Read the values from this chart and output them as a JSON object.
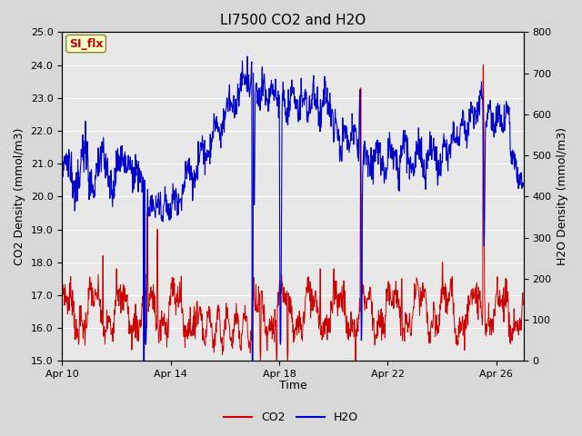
{
  "title": "LI7500 CO2 and H2O",
  "xlabel": "Time",
  "ylabel_left": "CO2 Density (mmol/m3)",
  "ylabel_right": "H2O Density (mmol/m3)",
  "ylim_left": [
    15.0,
    25.0
  ],
  "ylim_right": [
    0,
    800
  ],
  "yticks_left": [
    15.0,
    16.0,
    17.0,
    18.0,
    19.0,
    20.0,
    21.0,
    22.0,
    23.0,
    24.0,
    25.0
  ],
  "yticks_right": [
    0,
    100,
    200,
    300,
    400,
    500,
    600,
    700,
    800
  ],
  "xtick_labels": [
    "Apr 10",
    "Apr 14",
    "Apr 18",
    "Apr 22",
    "Apr 26"
  ],
  "xtick_positions": [
    0,
    4,
    8,
    12,
    16
  ],
  "xlim": [
    0,
    17
  ],
  "annotation_text": "SI_flx",
  "annotation_color": "#cc0000",
  "annotation_bg": "#ffffcc",
  "annotation_border": "#888822",
  "co2_color": "#cc0000",
  "h2o_color": "#0000cc",
  "bg_color": "#e8e8e8",
  "grid_color": "#ffffff",
  "legend_co2": "CO2",
  "legend_h2o": "H2O",
  "title_fontsize": 11,
  "axis_fontsize": 9,
  "tick_fontsize": 8,
  "fig_width": 6.4,
  "fig_height": 4.8,
  "fig_dpi": 100
}
